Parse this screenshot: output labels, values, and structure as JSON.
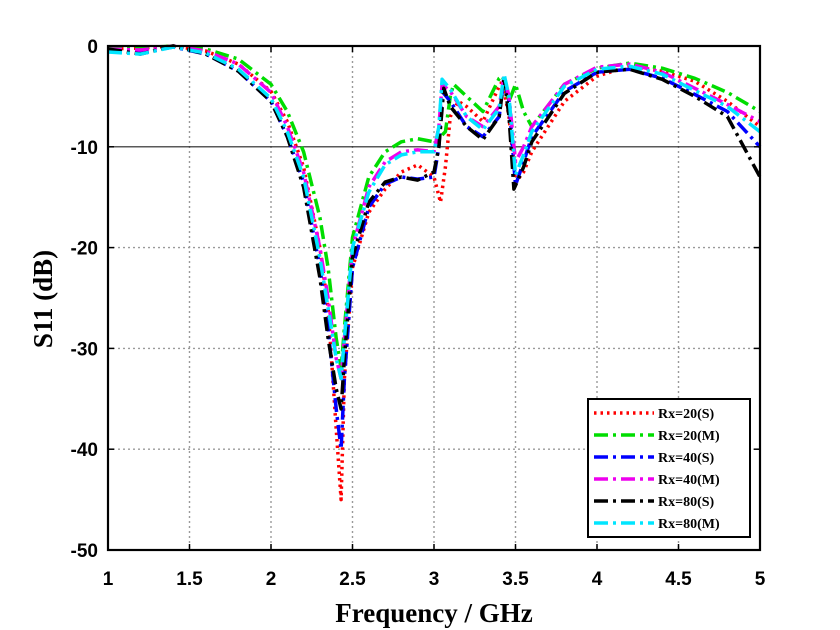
{
  "chart_data": {
    "type": "line",
    "xlabel": "Frequency / GHz",
    "ylabel": "S11 (dB)",
    "xlim": [
      1,
      5
    ],
    "ylim": [
      -50,
      0
    ],
    "xticks": [
      1,
      1.5,
      2,
      2.5,
      3,
      3.5,
      4,
      4.5,
      5
    ],
    "xtick_labels": [
      "1",
      "1.5",
      "2",
      "2.5",
      "3",
      "3.5",
      "4",
      "4.5",
      "5"
    ],
    "yticks": [
      0,
      -10,
      -20,
      -30,
      -40,
      -50
    ],
    "ytick_labels": [
      "0",
      "-10",
      "-20",
      "-30",
      "-40",
      "-50"
    ],
    "grid": true,
    "reference_line_y": -10,
    "legend_position": "lower-right",
    "series": [
      {
        "name": "Rx=20(S)",
        "color": "#ff0000",
        "dash": "dot",
        "x": [
          1.0,
          1.2,
          1.4,
          1.6,
          1.8,
          2.0,
          2.1,
          2.2,
          2.3,
          2.35,
          2.4,
          2.43,
          2.45,
          2.5,
          2.6,
          2.7,
          2.8,
          2.9,
          3.0,
          3.04,
          3.07,
          3.1,
          3.15,
          3.2,
          3.3,
          3.4,
          3.42,
          3.46,
          3.5,
          3.55,
          3.6,
          3.8,
          4.0,
          4.2,
          4.4,
          4.6,
          4.8,
          5.0
        ],
        "y": [
          -0.3,
          -0.2,
          0,
          -0.5,
          -1.8,
          -4.5,
          -7.5,
          -12,
          -20,
          -26,
          -38,
          -45,
          -33,
          -22,
          -16.5,
          -14.2,
          -12.5,
          -11.8,
          -13,
          -15.5,
          -12,
          -7,
          -5.5,
          -6,
          -7.5,
          -4,
          -3.5,
          -7,
          -13.5,
          -12.5,
          -10.5,
          -5.5,
          -3,
          -2,
          -2.5,
          -3.5,
          -5.5,
          -8
        ]
      },
      {
        "name": "Rx=20(M)",
        "color": "#00dd00",
        "dash": "dashdot",
        "x": [
          1.0,
          1.2,
          1.4,
          1.6,
          1.8,
          2.0,
          2.1,
          2.2,
          2.3,
          2.35,
          2.4,
          2.43,
          2.45,
          2.5,
          2.6,
          2.7,
          2.8,
          2.9,
          3.0,
          3.04,
          3.07,
          3.1,
          3.12,
          3.2,
          3.3,
          3.4,
          3.42,
          3.46,
          3.5,
          3.55,
          3.6,
          3.8,
          4.0,
          4.2,
          4.4,
          4.6,
          4.8,
          5.0
        ],
        "y": [
          -0.2,
          -0.2,
          0,
          -0.3,
          -1.3,
          -3.8,
          -6.5,
          -10.5,
          -17,
          -22,
          -29,
          -32,
          -28,
          -19,
          -13,
          -10.5,
          -9.5,
          -9.2,
          -9.5,
          -9,
          -8.5,
          -5,
          -3.8,
          -5,
          -6.5,
          -3.2,
          -3,
          -5.5,
          -3.8,
          -6.5,
          -8,
          -3.8,
          -2.2,
          -1.7,
          -2.2,
          -3.2,
          -4.6,
          -6.5
        ]
      },
      {
        "name": "Rx=40(S)",
        "color": "#0000ff",
        "dash": "dashdot",
        "x": [
          1.0,
          1.2,
          1.4,
          1.6,
          1.8,
          2.0,
          2.1,
          2.2,
          2.3,
          2.35,
          2.4,
          2.43,
          2.45,
          2.5,
          2.6,
          2.7,
          2.8,
          2.9,
          3.0,
          3.03,
          3.05,
          3.1,
          3.2,
          3.3,
          3.4,
          3.43,
          3.46,
          3.5,
          3.55,
          3.6,
          3.8,
          4.0,
          4.2,
          4.4,
          4.6,
          4.8,
          5.0
        ],
        "y": [
          -0.5,
          -0.7,
          -0.1,
          -0.8,
          -2.5,
          -5.5,
          -9,
          -13.5,
          -22,
          -28,
          -36,
          -40,
          -33,
          -22,
          -16,
          -13.7,
          -13,
          -13.2,
          -13,
          -10,
          -4.5,
          -5.5,
          -8,
          -9,
          -7,
          -3,
          -5.5,
          -13.8,
          -11.5,
          -9,
          -4.5,
          -2.6,
          -2.3,
          -3.2,
          -4.8,
          -6.5,
          -10
        ]
      },
      {
        "name": "Rx=40(M)",
        "color": "#ee00ee",
        "dash": "dashdot",
        "x": [
          1.0,
          1.2,
          1.4,
          1.6,
          1.8,
          2.0,
          2.1,
          2.2,
          2.3,
          2.35,
          2.4,
          2.43,
          2.45,
          2.5,
          2.6,
          2.7,
          2.8,
          2.9,
          3.0,
          3.03,
          3.05,
          3.1,
          3.2,
          3.3,
          3.4,
          3.43,
          3.46,
          3.5,
          3.55,
          3.6,
          3.8,
          4.0,
          4.2,
          4.4,
          4.6,
          4.8,
          5.0
        ],
        "y": [
          -0.3,
          -0.4,
          0,
          -0.5,
          -1.8,
          -4.6,
          -8,
          -12.5,
          -20,
          -25,
          -31,
          -33,
          -29,
          -20,
          -14,
          -11.5,
          -10.5,
          -10.3,
          -10.5,
          -8,
          -3.8,
          -4.5,
          -7,
          -8,
          -6,
          -3,
          -5,
          -11.5,
          -10,
          -8,
          -3.8,
          -2.1,
          -1.8,
          -2.6,
          -4.2,
          -5.8,
          -7.5
        ]
      },
      {
        "name": "Rx=80(S)",
        "color": "#000000",
        "dash": "dashdot",
        "x": [
          1.0,
          1.2,
          1.4,
          1.6,
          1.8,
          2.0,
          2.1,
          2.2,
          2.3,
          2.35,
          2.4,
          2.43,
          2.45,
          2.5,
          2.6,
          2.7,
          2.8,
          2.9,
          3.0,
          3.03,
          3.06,
          3.1,
          3.2,
          3.3,
          3.4,
          3.43,
          3.46,
          3.49,
          3.55,
          3.6,
          3.8,
          4.0,
          4.2,
          4.4,
          4.6,
          4.8,
          5.0
        ],
        "y": [
          -0.3,
          -0.8,
          0,
          -0.8,
          -2.5,
          -5.5,
          -9,
          -14,
          -23,
          -29,
          -34,
          -36,
          -31,
          -21,
          -15.5,
          -13.5,
          -13,
          -13.3,
          -12.5,
          -10,
          -4.2,
          -6,
          -8,
          -9.3,
          -7,
          -3.2,
          -7,
          -14.2,
          -12,
          -9.5,
          -4.7,
          -2.6,
          -2.3,
          -3.3,
          -5,
          -7,
          -13
        ]
      },
      {
        "name": "Rx=80(M)",
        "color": "#00e5ff",
        "dash": "dashdot",
        "x": [
          1.0,
          1.2,
          1.4,
          1.6,
          1.8,
          2.0,
          2.1,
          2.2,
          2.3,
          2.35,
          2.4,
          2.43,
          2.45,
          2.5,
          2.6,
          2.7,
          2.8,
          2.9,
          3.0,
          3.03,
          3.05,
          3.1,
          3.2,
          3.3,
          3.4,
          3.43,
          3.46,
          3.5,
          3.55,
          3.6,
          3.8,
          4.0,
          4.2,
          4.4,
          4.6,
          4.8,
          5.0
        ],
        "y": [
          -0.6,
          -0.8,
          -0.1,
          -0.7,
          -2.3,
          -5.2,
          -8.5,
          -13,
          -21,
          -26,
          -31,
          -33,
          -29,
          -20,
          -14.5,
          -11.8,
          -10.8,
          -10.5,
          -10.5,
          -8,
          -3.3,
          -4.3,
          -7,
          -8.3,
          -6.2,
          -2.8,
          -5,
          -12.8,
          -10.8,
          -8.5,
          -4,
          -2.3,
          -2,
          -2.8,
          -4.4,
          -6,
          -8.5
        ]
      }
    ]
  }
}
